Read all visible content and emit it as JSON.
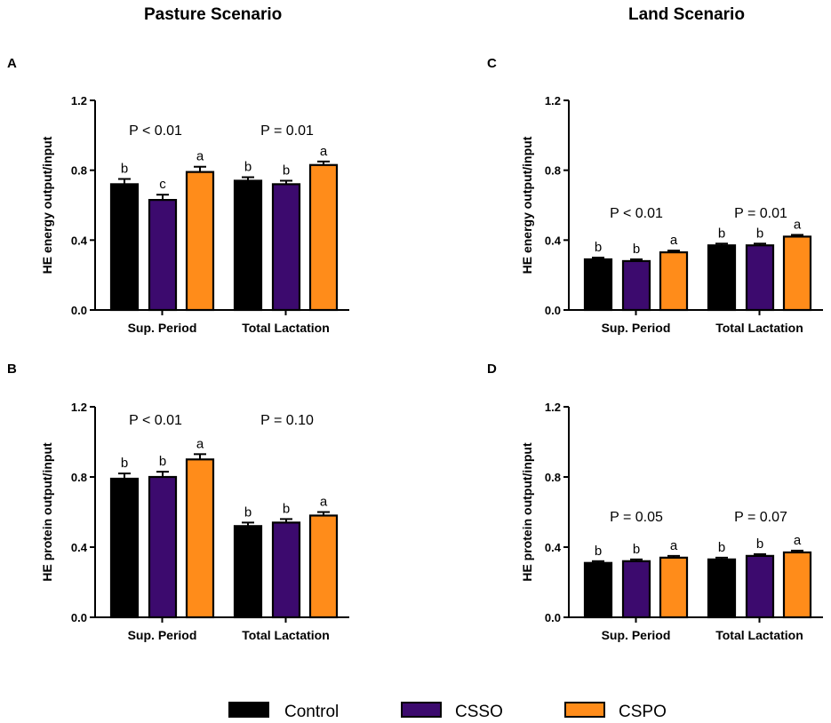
{
  "titles": {
    "pasture": "Pasture Scenario",
    "land": "Land Scenario"
  },
  "colors": {
    "Control": "#000000",
    "CSSO": "#3c0a6e",
    "CSPO": "#ff8c1a"
  },
  "legend": [
    "Control",
    "CSSO",
    "CSPO"
  ],
  "chart_data": [
    {
      "panel": "A",
      "scenario": "Pasture Scenario",
      "type": "bar",
      "ylabel": "HE energy output/input",
      "ylim": [
        0,
        1.2
      ],
      "yticks": [
        "0.0",
        "0.4",
        "0.8",
        "1.2"
      ],
      "groups": [
        {
          "category": "Sup. Period",
          "pvalue": "P < 0.01",
          "series": [
            {
              "name": "Control",
              "value": 0.72,
              "error": 0.03,
              "sig": "b"
            },
            {
              "name": "CSSO",
              "value": 0.63,
              "error": 0.03,
              "sig": "c"
            },
            {
              "name": "CSPO",
              "value": 0.79,
              "error": 0.03,
              "sig": "a"
            }
          ]
        },
        {
          "category": "Total Lactation",
          "pvalue": "P = 0.01",
          "series": [
            {
              "name": "Control",
              "value": 0.74,
              "error": 0.02,
              "sig": "b"
            },
            {
              "name": "CSSO",
              "value": 0.72,
              "error": 0.02,
              "sig": "b"
            },
            {
              "name": "CSPO",
              "value": 0.83,
              "error": 0.02,
              "sig": "a"
            }
          ]
        }
      ]
    },
    {
      "panel": "B",
      "scenario": "Pasture Scenario",
      "type": "bar",
      "ylabel": "HE protein output/input",
      "ylim": [
        0,
        1.2
      ],
      "yticks": [
        "0.0",
        "0.4",
        "0.8",
        "1.2"
      ],
      "groups": [
        {
          "category": "Sup. Period",
          "pvalue": "P < 0.01",
          "series": [
            {
              "name": "Control",
              "value": 0.79,
              "error": 0.03,
              "sig": "b"
            },
            {
              "name": "CSSO",
              "value": 0.8,
              "error": 0.03,
              "sig": "b"
            },
            {
              "name": "CSPO",
              "value": 0.9,
              "error": 0.03,
              "sig": "a"
            }
          ]
        },
        {
          "category": "Total Lactation",
          "pvalue": "P = 0.10",
          "series": [
            {
              "name": "Control",
              "value": 0.52,
              "error": 0.02,
              "sig": "b"
            },
            {
              "name": "CSSO",
              "value": 0.54,
              "error": 0.02,
              "sig": "b"
            },
            {
              "name": "CSPO",
              "value": 0.58,
              "error": 0.02,
              "sig": "a"
            }
          ]
        }
      ]
    },
    {
      "panel": "C",
      "scenario": "Land Scenario",
      "type": "bar",
      "ylabel": "HE energy output/input",
      "ylim": [
        0,
        1.2
      ],
      "yticks": [
        "0.0",
        "0.4",
        "0.8",
        "1.2"
      ],
      "groups": [
        {
          "category": "Sup. Period",
          "pvalue": "P < 0.01",
          "series": [
            {
              "name": "Control",
              "value": 0.29,
              "error": 0.01,
              "sig": "b"
            },
            {
              "name": "CSSO",
              "value": 0.28,
              "error": 0.01,
              "sig": "b"
            },
            {
              "name": "CSPO",
              "value": 0.33,
              "error": 0.01,
              "sig": "a"
            }
          ]
        },
        {
          "category": "Total Lactation",
          "pvalue": "P = 0.01",
          "series": [
            {
              "name": "Control",
              "value": 0.37,
              "error": 0.01,
              "sig": "b"
            },
            {
              "name": "CSSO",
              "value": 0.37,
              "error": 0.01,
              "sig": "b"
            },
            {
              "name": "CSPO",
              "value": 0.42,
              "error": 0.01,
              "sig": "a"
            }
          ]
        }
      ]
    },
    {
      "panel": "D",
      "scenario": "Land Scenario",
      "type": "bar",
      "ylabel": "HE protein output/input",
      "ylim": [
        0,
        1.2
      ],
      "yticks": [
        "0.0",
        "0.4",
        "0.8",
        "1.2"
      ],
      "groups": [
        {
          "category": "Sup. Period",
          "pvalue": "P = 0.05",
          "series": [
            {
              "name": "Control",
              "value": 0.31,
              "error": 0.01,
              "sig": "b"
            },
            {
              "name": "CSSO",
              "value": 0.32,
              "error": 0.01,
              "sig": "b"
            },
            {
              "name": "CSPO",
              "value": 0.34,
              "error": 0.01,
              "sig": "a"
            }
          ]
        },
        {
          "category": "Total Lactation",
          "pvalue": "P = 0.07",
          "series": [
            {
              "name": "Control",
              "value": 0.33,
              "error": 0.01,
              "sig": "b"
            },
            {
              "name": "CSSO",
              "value": 0.35,
              "error": 0.01,
              "sig": "b"
            },
            {
              "name": "CSPO",
              "value": 0.37,
              "error": 0.01,
              "sig": "a"
            }
          ]
        }
      ]
    }
  ]
}
